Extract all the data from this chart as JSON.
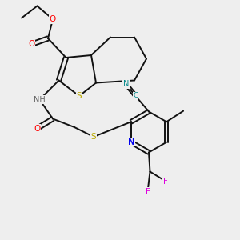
{
  "bg_color": "#eeeeee",
  "bond_color": "#111111",
  "bond_width": 1.4,
  "atom_colors": {
    "O": "#ff0000",
    "N": "#0000ee",
    "S": "#bbaa00",
    "F": "#dd00dd",
    "CN_color": "#008888",
    "H_color": "#666666"
  },
  "font_size": 7.0
}
